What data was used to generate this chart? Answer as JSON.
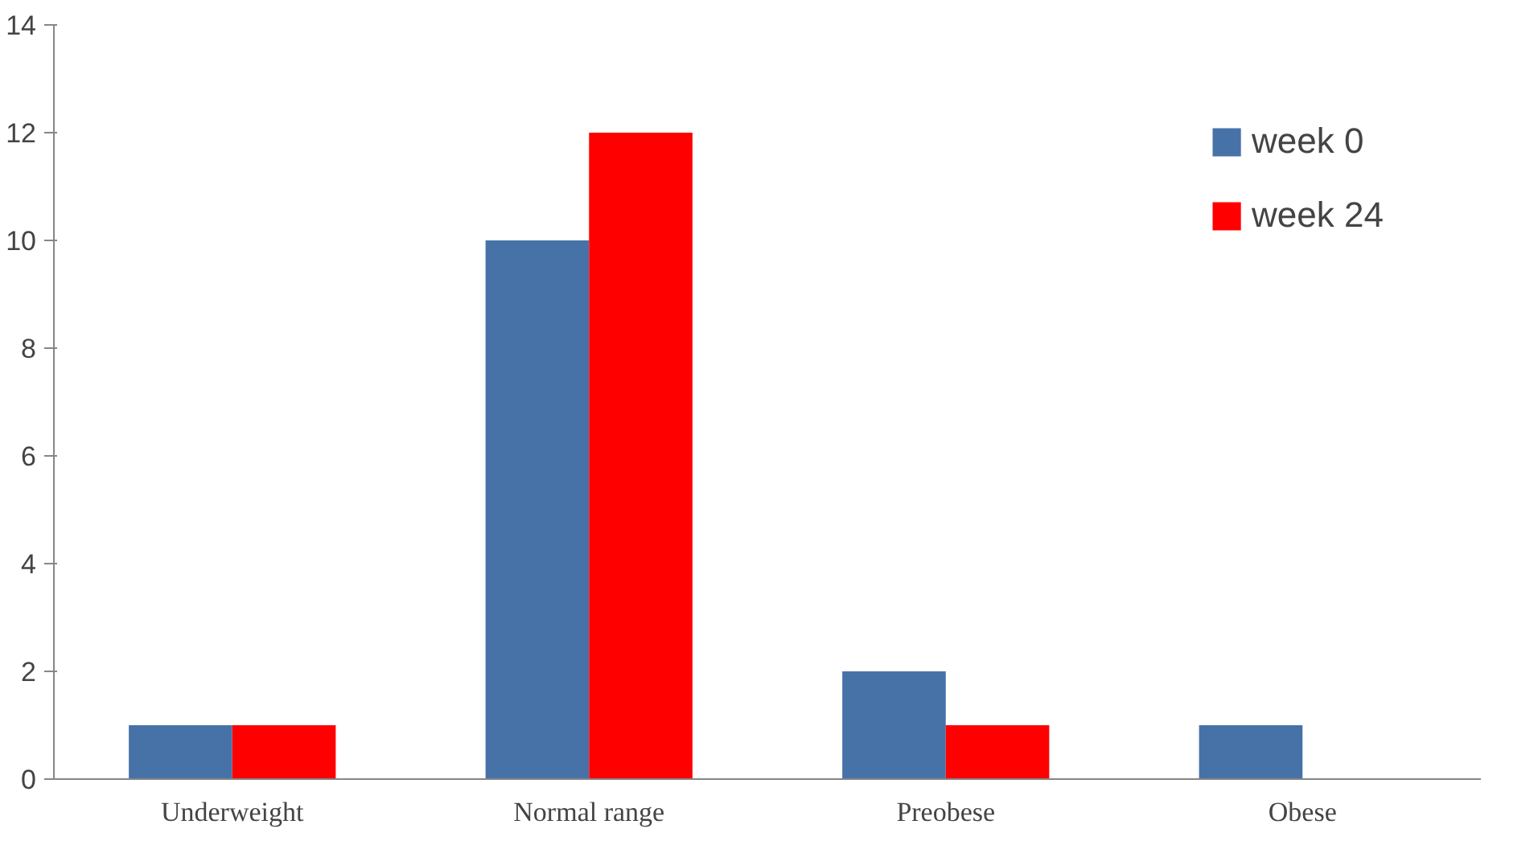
{
  "chart_data": {
    "type": "bar",
    "categories": [
      "Underweight",
      "Normal range",
      "Preobese",
      "Obese"
    ],
    "series": [
      {
        "name": "week 0",
        "color": "#4672a8",
        "values": [
          1,
          10,
          2,
          1
        ]
      },
      {
        "name": "week 24",
        "color": "#ff0000",
        "values": [
          1,
          12,
          1,
          0
        ]
      }
    ],
    "ylim": [
      0,
      14
    ],
    "yticks": [
      0,
      2,
      4,
      6,
      8,
      10,
      12,
      14
    ],
    "grid": false,
    "legend": "top right"
  }
}
